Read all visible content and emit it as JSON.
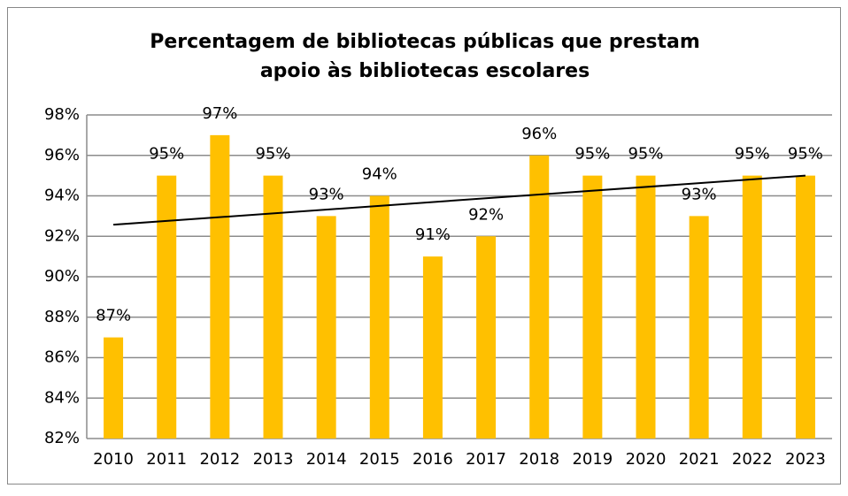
{
  "chart_data": {
    "type": "bar",
    "title": [
      "Percentagem de bibliotecas públicas que prestam",
      "apoio às bibliotecas escolares"
    ],
    "categories": [
      "2010",
      "2011",
      "2012",
      "2013",
      "2014",
      "2015",
      "2016",
      "2017",
      "2018",
      "2019",
      "2020",
      "2021",
      "2022",
      "2023"
    ],
    "values": [
      87,
      95,
      97,
      95,
      93,
      94,
      91,
      92,
      96,
      95,
      95,
      93,
      95,
      95
    ],
    "value_labels": [
      "87%",
      "95%",
      "97%",
      "95%",
      "93%",
      "94%",
      "91%",
      "92%",
      "96%",
      "95%",
      "95%",
      "93%",
      "95%",
      "95%"
    ],
    "color": "#ffc000",
    "trendline": "linear",
    "ylim": [
      82,
      98
    ],
    "yticks": [
      {
        "value": 82,
        "label": "82%"
      },
      {
        "value": 84,
        "label": "84%"
      },
      {
        "value": 86,
        "label": "86%"
      },
      {
        "value": 88,
        "label": "88%"
      },
      {
        "value": 90,
        "label": "90%"
      },
      {
        "value": 92,
        "label": "92%"
      },
      {
        "value": 94,
        "label": "94%"
      },
      {
        "value": 96,
        "label": "96%"
      },
      {
        "value": 98,
        "label": "98%"
      }
    ],
    "grid": true
  }
}
